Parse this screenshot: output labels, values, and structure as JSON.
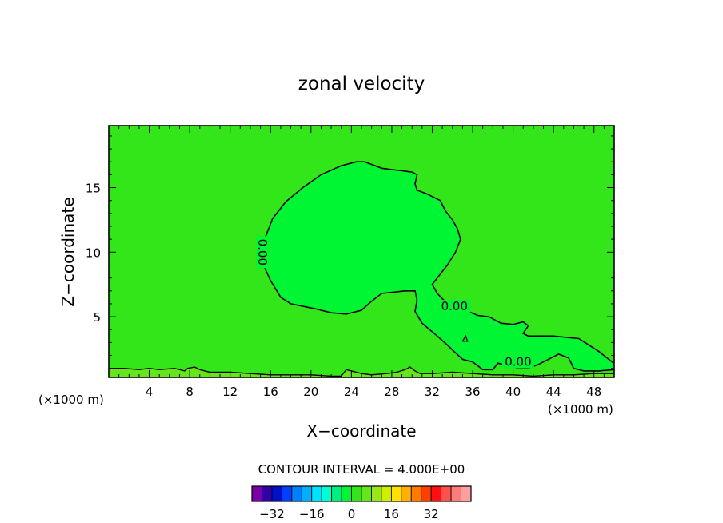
{
  "chart_data": {
    "type": "contour",
    "title": "zonal velocity",
    "xlabel": "X−coordinate",
    "ylabel": "Z−coordinate",
    "x_unit_left": "(×1000 m)",
    "x_unit_right": "(×1000 m)",
    "xlim": [
      0,
      50
    ],
    "ylim": [
      0.3,
      19.8
    ],
    "x_ticks": [
      4,
      8,
      12,
      16,
      20,
      24,
      28,
      32,
      36,
      40,
      44,
      48
    ],
    "y_ticks": [
      5,
      10,
      15
    ],
    "contour_interval_text": "CONTOUR INTERVAL = 4.000E+00",
    "contour_labels": [
      {
        "text": "0.00",
        "x": 15.2,
        "y": 10.0,
        "rotate": 90
      },
      {
        "text": "0.00",
        "x": 34.2,
        "y": 5.8,
        "rotate": 0
      },
      {
        "text": "0.00",
        "x": 40.5,
        "y": 1.5,
        "rotate": 0
      }
    ],
    "background_color": "#33e61a",
    "region_color": "#00f533",
    "near_surface_color": "#66e61a",
    "zero_contour": [
      [
        15.3,
        10.0
      ],
      [
        15.5,
        11.2
      ],
      [
        16.2,
        12.6
      ],
      [
        17.5,
        13.9
      ],
      [
        19.2,
        15.0
      ],
      [
        21.0,
        16.0
      ],
      [
        23.0,
        16.7
      ],
      [
        24.5,
        17.0
      ],
      [
        25.3,
        17.0
      ],
      [
        26.0,
        16.8
      ],
      [
        27.0,
        16.5
      ],
      [
        28.0,
        16.4
      ],
      [
        29.0,
        16.3
      ],
      [
        30.0,
        16.2
      ],
      [
        30.5,
        16.0
      ],
      [
        30.3,
        15.3
      ],
      [
        30.5,
        14.8
      ],
      [
        31.5,
        14.5
      ],
      [
        32.8,
        14.0
      ],
      [
        33.3,
        13.2
      ],
      [
        34.0,
        12.5
      ],
      [
        34.5,
        11.8
      ],
      [
        34.8,
        11.0
      ],
      [
        34.3,
        10.0
      ],
      [
        33.5,
        9.0
      ],
      [
        32.5,
        8.0
      ],
      [
        32.0,
        7.5
      ],
      [
        32.5,
        6.8
      ],
      [
        33.5,
        6.0
      ],
      [
        35.0,
        5.6
      ],
      [
        36.5,
        5.1
      ],
      [
        37.6,
        5.0
      ],
      [
        38.8,
        4.5
      ],
      [
        40.0,
        4.4
      ],
      [
        41.0,
        4.6
      ],
      [
        41.5,
        4.3
      ],
      [
        41.0,
        3.7
      ],
      [
        41.5,
        3.5
      ],
      [
        44.0,
        3.5
      ],
      [
        46.5,
        3.3
      ],
      [
        47.5,
        2.8
      ],
      [
        48.5,
        2.3
      ],
      [
        49.3,
        1.8
      ],
      [
        49.8,
        1.5
      ],
      [
        50.0,
        1.3
      ]
    ],
    "zero_contour_2": [
      [
        50.0,
        0.9
      ],
      [
        48.5,
        0.8
      ],
      [
        47.0,
        0.8
      ],
      [
        46.0,
        1.0
      ],
      [
        45.5,
        1.8
      ],
      [
        44.5,
        2.1
      ],
      [
        43.5,
        1.7
      ],
      [
        42.5,
        1.3
      ],
      [
        41.5,
        1.0
      ],
      [
        40.5,
        1.0
      ],
      [
        39.5,
        1.2
      ],
      [
        38.5,
        1.4
      ],
      [
        38.0,
        0.9
      ],
      [
        37.0,
        0.9
      ],
      [
        36.5,
        1.2
      ],
      [
        36.0,
        1.5
      ],
      [
        35.0,
        1.7
      ],
      [
        34.3,
        2.2
      ],
      [
        33.5,
        2.8
      ],
      [
        32.5,
        3.5
      ],
      [
        31.0,
        4.5
      ],
      [
        30.3,
        5.4
      ],
      [
        30.5,
        6.3
      ],
      [
        30.3,
        7.0
      ],
      [
        29.3,
        7.0
      ],
      [
        27.0,
        6.8
      ],
      [
        26.0,
        6.2
      ],
      [
        25.0,
        5.5
      ],
      [
        23.5,
        5.2
      ],
      [
        22.0,
        5.3
      ],
      [
        20.5,
        5.6
      ],
      [
        18.0,
        6.0
      ],
      [
        17.0,
        6.5
      ],
      [
        16.0,
        7.8
      ],
      [
        15.4,
        8.8
      ],
      [
        15.3,
        10.0
      ]
    ],
    "small_loop": [
      [
        35.0,
        3.1
      ],
      [
        35.3,
        3.5
      ],
      [
        35.5,
        3.1
      ],
      [
        35.0,
        3.1
      ]
    ],
    "surface_contour": [
      [
        0,
        1.0
      ],
      [
        1.5,
        1.0
      ],
      [
        3.0,
        0.9
      ],
      [
        4.0,
        1.0
      ],
      [
        5.0,
        0.9
      ],
      [
        6.5,
        1.0
      ],
      [
        7.5,
        0.8
      ],
      [
        7.8,
        1.0
      ],
      [
        8.5,
        1.1
      ],
      [
        9.0,
        0.9
      ],
      [
        10.0,
        0.7
      ],
      [
        12.0,
        0.7
      ],
      [
        14.0,
        0.6
      ],
      [
        16.0,
        0.5
      ],
      [
        18.0,
        0.5
      ],
      [
        20.0,
        0.5
      ],
      [
        22.0,
        0.4
      ],
      [
        23.0,
        0.4
      ],
      [
        23.5,
        0.9
      ],
      [
        24.0,
        0.8
      ],
      [
        25.0,
        0.6
      ],
      [
        26.0,
        0.5
      ],
      [
        27.5,
        0.6
      ],
      [
        28.5,
        0.7
      ],
      [
        29.3,
        0.9
      ],
      [
        29.8,
        1.1
      ],
      [
        30.3,
        0.8
      ],
      [
        30.8,
        0.6
      ],
      [
        32.0,
        0.6
      ],
      [
        34.0,
        0.7
      ],
      [
        36.0,
        0.6
      ],
      [
        38.0,
        0.5
      ],
      [
        40.0,
        0.5
      ],
      [
        42.0,
        0.4
      ],
      [
        44.0,
        0.5
      ],
      [
        46.0,
        0.5
      ],
      [
        48.0,
        0.6
      ],
      [
        50,
        0.6
      ]
    ],
    "colorbar": {
      "colors": [
        "#7a00a8",
        "#3000a8",
        "#0010c8",
        "#0040ff",
        "#0080ff",
        "#00b0ff",
        "#00e0ff",
        "#00ffd0",
        "#00f080",
        "#00f533",
        "#33e61a",
        "#66e61a",
        "#99e61a",
        "#ccf000",
        "#ffe000",
        "#ffb000",
        "#ff7a00",
        "#ff4000",
        "#ff1010",
        "#ff5050",
        "#ff7a7a",
        "#ffa0a0"
      ],
      "labels": [
        "−32",
        "−16",
        "0",
        "16",
        "32"
      ]
    }
  }
}
